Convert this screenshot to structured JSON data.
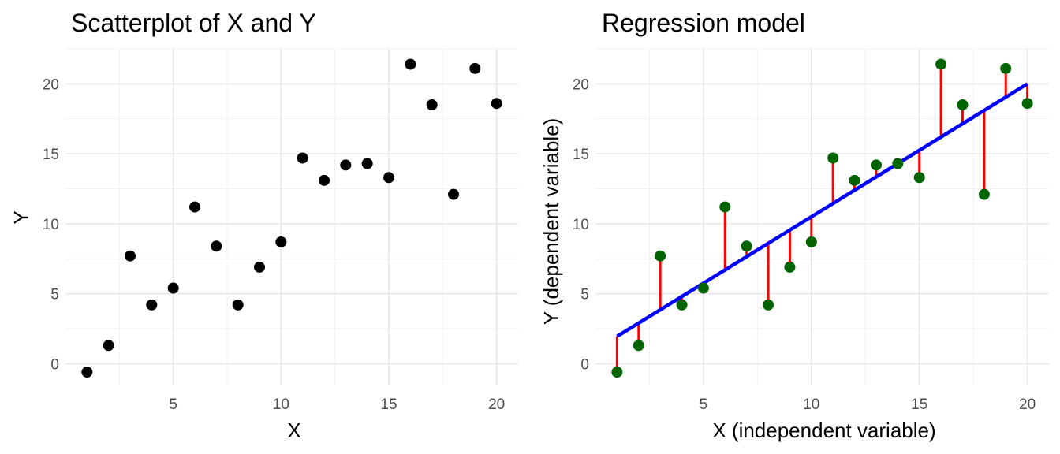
{
  "chart_data": [
    {
      "type": "scatter",
      "title": "Scatterplot of X and Y",
      "xlabel": "X",
      "ylabel": "Y",
      "xlim": [
        0,
        21
      ],
      "ylim": [
        -1.5,
        22.5
      ],
      "x_ticks": [
        5,
        10,
        15,
        20
      ],
      "y_ticks": [
        0,
        5,
        10,
        15,
        20
      ],
      "grid": true,
      "point_color": "#000000",
      "x": [
        1,
        2,
        3,
        4,
        5,
        6,
        7,
        8,
        9,
        10,
        11,
        12,
        13,
        14,
        15,
        16,
        17,
        18,
        19,
        20
      ],
      "y": [
        -0.6,
        1.3,
        7.7,
        4.2,
        5.4,
        11.2,
        8.4,
        4.2,
        6.9,
        8.7,
        14.7,
        13.1,
        14.2,
        14.3,
        13.3,
        21.4,
        18.5,
        12.1,
        21.1,
        18.6
      ]
    },
    {
      "type": "scatter",
      "title": "Regression model",
      "xlabel": "X (independent variable)",
      "ylabel": "Y (dependent variable)",
      "xlim": [
        0,
        21
      ],
      "ylim": [
        -1.5,
        22.5
      ],
      "x_ticks": [
        5,
        10,
        15,
        20
      ],
      "y_ticks": [
        0,
        5,
        10,
        15,
        20
      ],
      "grid": true,
      "point_color": "#006400",
      "line_color": "#0000ff",
      "residual_color": "#ff0000",
      "regression_line": {
        "intercept": 1.0,
        "slope": 0.95
      },
      "x": [
        1,
        2,
        3,
        4,
        5,
        6,
        7,
        8,
        9,
        10,
        11,
        12,
        13,
        14,
        15,
        16,
        17,
        18,
        19,
        20
      ],
      "y": [
        -0.6,
        1.3,
        7.7,
        4.2,
        5.4,
        11.2,
        8.4,
        4.2,
        6.9,
        8.7,
        14.7,
        13.1,
        14.2,
        14.3,
        13.3,
        21.4,
        18.5,
        12.1,
        21.1,
        18.6
      ]
    }
  ]
}
